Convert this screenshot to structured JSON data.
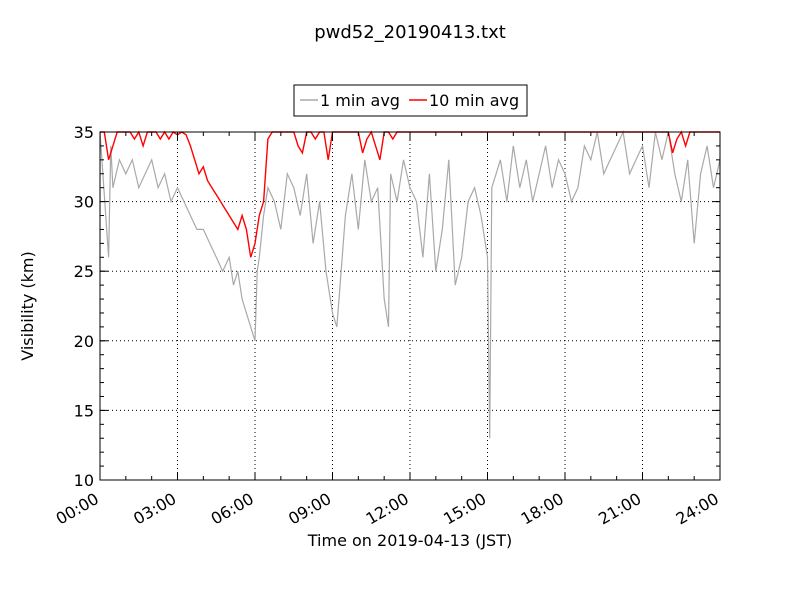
{
  "chart_data": {
    "type": "line",
    "title": "pwd52_20190413.txt",
    "xlabel": "Time on 2019-04-13 (JST)",
    "ylabel": "Visibility (km)",
    "xlim": [
      "00:00",
      "24:00"
    ],
    "ylim": [
      10,
      35
    ],
    "x_ticks": [
      "00:00",
      "03:00",
      "06:00",
      "09:00",
      "12:00",
      "15:00",
      "18:00",
      "21:00",
      "24:00"
    ],
    "y_ticks": [
      10,
      15,
      20,
      25,
      30,
      35
    ],
    "grid": true,
    "legend_position": "top-center",
    "series": [
      {
        "name": "1 min avg",
        "color": "#a9a9a9",
        "time": [
          "00:00",
          "00:20",
          "00:25",
          "00:30",
          "00:45",
          "01:00",
          "01:15",
          "01:30",
          "01:45",
          "02:00",
          "02:15",
          "02:30",
          "02:45",
          "03:00",
          "03:15",
          "03:30",
          "03:45",
          "04:00",
          "04:15",
          "04:30",
          "04:45",
          "05:00",
          "05:10",
          "05:20",
          "05:30",
          "05:40",
          "05:50",
          "06:00",
          "06:05",
          "06:10",
          "06:20",
          "06:30",
          "06:45",
          "07:00",
          "07:15",
          "07:30",
          "07:45",
          "08:00",
          "08:15",
          "08:30",
          "08:45",
          "09:00",
          "09:10",
          "09:15",
          "09:30",
          "09:45",
          "10:00",
          "10:15",
          "10:30",
          "10:45",
          "11:00",
          "11:10",
          "11:15",
          "11:30",
          "11:45",
          "12:00",
          "12:15",
          "12:30",
          "12:45",
          "13:00",
          "13:15",
          "13:30",
          "13:45",
          "14:00",
          "14:15",
          "14:30",
          "14:45",
          "15:00",
          "15:05",
          "15:10",
          "15:20",
          "15:30",
          "15:45",
          "16:00",
          "16:15",
          "16:30",
          "16:45",
          "17:00",
          "17:15",
          "17:30",
          "17:45",
          "18:00",
          "18:15",
          "18:30",
          "18:45",
          "19:00",
          "19:15",
          "19:30",
          "19:45",
          "20:00",
          "20:15",
          "20:30",
          "20:45",
          "21:00",
          "21:15",
          "21:30",
          "21:45",
          "22:00",
          "22:15",
          "22:30",
          "22:45",
          "23:00",
          "23:15",
          "23:30",
          "23:45",
          "24:00"
        ],
        "values": [
          35,
          26,
          34,
          31,
          33,
          32,
          33,
          31,
          32,
          33,
          31,
          32,
          30,
          31,
          30,
          29,
          28,
          28,
          27,
          26,
          25,
          26,
          24,
          25,
          23,
          22,
          21,
          20,
          25,
          26,
          29,
          31,
          30,
          28,
          32,
          31,
          29,
          32,
          27,
          30,
          25,
          22,
          21,
          23,
          29,
          32,
          28,
          33,
          30,
          31,
          23,
          21,
          32,
          30,
          33,
          31,
          30,
          26,
          32,
          25,
          28,
          33,
          24,
          26,
          30,
          31,
          29,
          26,
          13,
          31,
          32,
          33,
          30,
          34,
          31,
          33,
          30,
          32,
          34,
          31,
          33,
          32,
          30,
          31,
          34,
          33,
          35,
          32,
          33,
          34,
          35,
          32,
          33,
          34,
          31,
          35,
          33,
          35,
          32,
          30,
          33,
          27,
          32,
          34,
          31,
          33
        ]
      },
      {
        "name": "10 min avg",
        "color": "#ff0000",
        "time": [
          "00:00",
          "00:10",
          "00:20",
          "00:30",
          "00:40",
          "00:50",
          "01:00",
          "01:10",
          "01:20",
          "01:30",
          "01:40",
          "01:50",
          "02:00",
          "02:10",
          "02:20",
          "02:30",
          "02:40",
          "02:50",
          "03:00",
          "03:10",
          "03:20",
          "03:30",
          "03:40",
          "03:50",
          "04:00",
          "04:10",
          "04:20",
          "04:30",
          "04:40",
          "04:50",
          "05:00",
          "05:10",
          "05:20",
          "05:30",
          "05:40",
          "05:50",
          "06:00",
          "06:10",
          "06:20",
          "06:30",
          "06:40",
          "06:50",
          "07:00",
          "07:10",
          "07:20",
          "07:30",
          "07:40",
          "07:50",
          "08:00",
          "08:10",
          "08:20",
          "08:30",
          "08:40",
          "08:50",
          "09:00",
          "09:10",
          "09:20",
          "09:30",
          "09:40",
          "09:50",
          "10:00",
          "10:10",
          "10:20",
          "10:30",
          "10:40",
          "10:50",
          "11:00",
          "11:10",
          "11:20",
          "11:30",
          "11:40",
          "11:50",
          "12:00",
          "13:00",
          "14:00",
          "15:00",
          "15:10",
          "15:20",
          "16:00",
          "17:00",
          "18:00",
          "19:00",
          "20:00",
          "21:00",
          "22:00",
          "22:10",
          "22:20",
          "22:30",
          "22:40",
          "22:50",
          "23:00",
          "23:10",
          "23:20",
          "23:30",
          "23:40",
          "23:50",
          "24:00"
        ],
        "values": [
          35,
          35,
          33,
          34,
          35,
          35,
          35,
          35,
          34.5,
          35,
          34,
          35,
          35,
          35,
          34.5,
          35,
          34.5,
          35,
          34.8,
          35,
          34.8,
          34,
          33,
          32,
          32.5,
          31.5,
          31,
          30.5,
          30,
          29.5,
          29,
          28.5,
          28,
          29,
          28,
          26,
          27,
          29,
          30,
          34.5,
          35,
          35,
          35,
          35,
          35,
          35,
          34,
          33.5,
          35,
          35,
          34.5,
          35,
          35,
          33,
          35,
          35,
          35,
          35,
          35,
          35,
          35,
          33.5,
          34.5,
          35,
          34,
          33,
          35,
          35,
          34.5,
          35,
          35,
          35,
          35,
          35,
          35,
          35,
          35,
          35,
          35,
          35,
          35,
          35,
          35,
          35,
          35,
          33.5,
          34.5,
          35,
          34,
          35,
          35,
          35,
          35,
          35,
          35,
          35,
          35
        ]
      }
    ]
  }
}
